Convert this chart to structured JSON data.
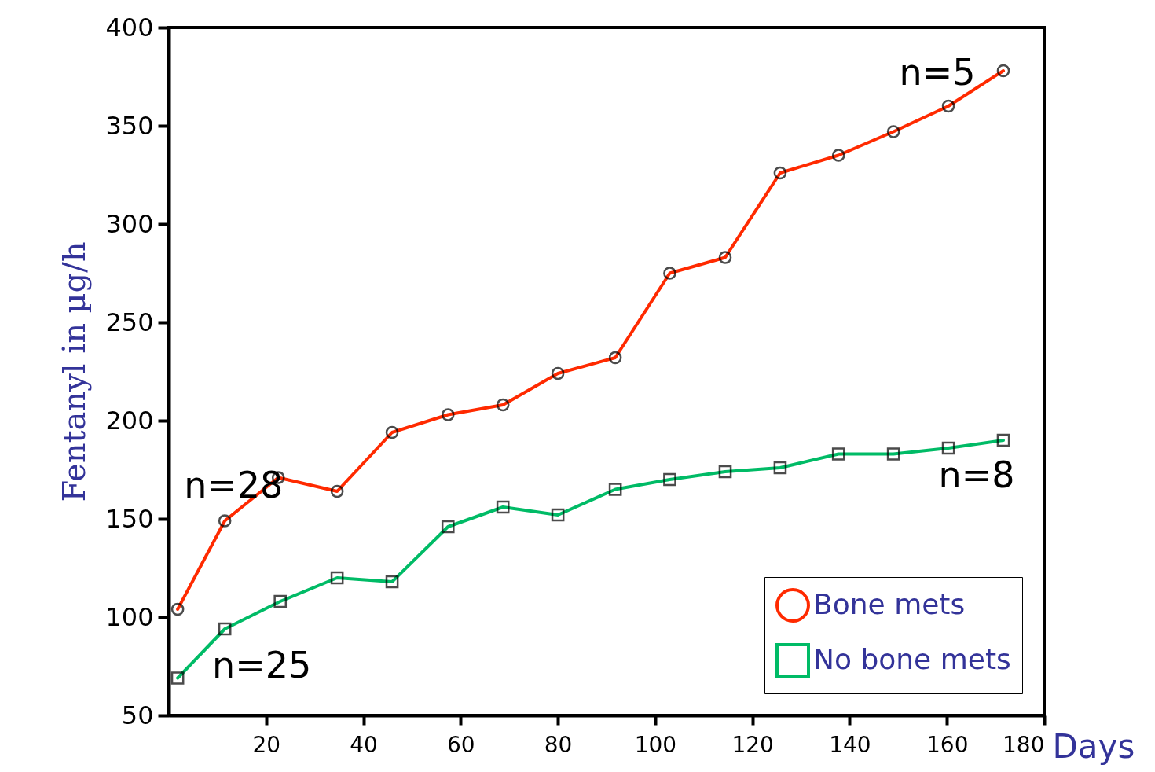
{
  "chart_data": {
    "type": "line",
    "xlabel": "Days",
    "ylabel": "Fentanyl  in µg/h",
    "xlim": [
      0,
      180
    ],
    "xticks": [
      20,
      40,
      60,
      80,
      100,
      120,
      140,
      160,
      180
    ],
    "ylim": [
      50,
      400
    ],
    "yticks": [
      50,
      100,
      150,
      200,
      250,
      300,
      350,
      400
    ],
    "grid": false,
    "legend": "bottom right",
    "line_style": "solid",
    "series": [
      {
        "name": "Bone mets",
        "color": "#ff2a00",
        "marker": "circle",
        "x": [
          1.8,
          11.5,
          22.5,
          34.6,
          45.9,
          57.4,
          68.7,
          80,
          91.8,
          103,
          114.4,
          125.7,
          137.7,
          149,
          160.3,
          171.6
        ],
        "values": [
          104,
          149,
          171,
          164,
          194,
          203,
          208,
          224,
          232,
          275,
          283,
          326,
          335,
          347,
          360,
          378
        ]
      },
      {
        "name": "No bone mets",
        "color": "#00bb66",
        "marker": "square",
        "x": [
          1.8,
          11.5,
          22.9,
          34.6,
          45.9,
          57.4,
          68.7,
          80,
          91.8,
          103,
          114.4,
          125.7,
          137.7,
          149,
          160.3,
          171.6
        ],
        "values": [
          69,
          94,
          108,
          120,
          118,
          146,
          156,
          152,
          165,
          170,
          174,
          176,
          183,
          183,
          186,
          190
        ]
      }
    ],
    "annotations": [
      {
        "text": "n=28",
        "x": 22.5,
        "y": 171
      },
      {
        "text": "n=25",
        "x": 11.5,
        "y": 94
      },
      {
        "text": "n=5",
        "x": 171.6,
        "y": 378
      },
      {
        "text": "n=8",
        "x": 171.6,
        "y": 190
      }
    ]
  }
}
